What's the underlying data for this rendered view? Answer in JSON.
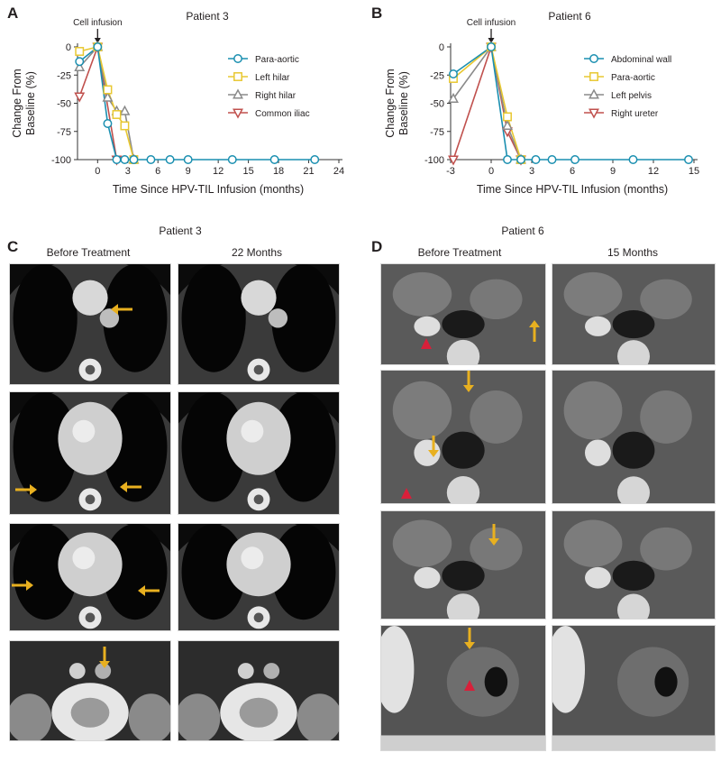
{
  "panels": {
    "a": {
      "letter": "A",
      "title": "Patient 3"
    },
    "b": {
      "letter": "B",
      "title": "Patient 6"
    },
    "c": {
      "letter": "C",
      "title": "Patient 3",
      "col1": "Before Treatment",
      "col2": "22 Months"
    },
    "d": {
      "letter": "D",
      "title": "Patient 6",
      "col1": "Before Treatment",
      "col2": "15 Months"
    }
  },
  "colors": {
    "teal": "#1a8fb0",
    "yellow": "#e8c832",
    "gray": "#8a8a8a",
    "red": "#c0504d",
    "arrow": "#e8b020",
    "arrowhead_red": "#d8203a"
  },
  "chart_data": [
    {
      "type": "line",
      "title": "Patient 3",
      "annotation": "Cell infusion",
      "xlabel": "Time Since HPV-TIL Infusion (months)",
      "ylabel": "Change From Baseline (%)",
      "xlim": [
        -2,
        24
      ],
      "ylim": [
        -100,
        0
      ],
      "xticks": [
        0,
        3,
        6,
        9,
        12,
        15,
        18,
        21,
        24
      ],
      "yticks": [
        0,
        -25,
        -50,
        -75,
        -100
      ],
      "legend_position": "right",
      "series": [
        {
          "name": "Para-aortic",
          "marker": "circle",
          "color": "#1a8fb0",
          "x": [
            -1.8,
            0,
            1,
            1.9,
            2.7,
            3.6,
            5.3,
            7.2,
            9,
            13.4,
            17.6,
            21.6
          ],
          "y": [
            -13,
            0,
            -68,
            -100,
            -100,
            -100,
            -100,
            -100,
            -100,
            -100,
            -100,
            -100
          ]
        },
        {
          "name": "Left hilar",
          "marker": "square",
          "color": "#e8c832",
          "x": [
            -1.8,
            0,
            1,
            1.9,
            2.7,
            3.6
          ],
          "y": [
            -4,
            0,
            -38,
            -60,
            -70,
            -100
          ]
        },
        {
          "name": "Right hilar",
          "marker": "triangle",
          "color": "#8a8a8a",
          "x": [
            -1.8,
            0,
            1,
            1.9,
            2.7,
            3.6
          ],
          "y": [
            -18,
            0,
            -45,
            -57,
            -57,
            -100
          ]
        },
        {
          "name": "Common iliac",
          "marker": "triangle-down",
          "color": "#c0504d",
          "x": [
            -1.8,
            0,
            1.9
          ],
          "y": [
            -44,
            0,
            -100
          ]
        }
      ]
    },
    {
      "type": "line",
      "title": "Patient 6",
      "annotation": "Cell infusion",
      "xlabel": "Time Since HPV-TIL Infusion (months)",
      "ylabel": "Change From Baseline (%)",
      "xlim": [
        -3,
        15
      ],
      "ylim": [
        -100,
        0
      ],
      "xticks": [
        -3,
        0,
        3,
        6,
        9,
        12,
        15
      ],
      "yticks": [
        0,
        -25,
        -50,
        -75,
        -100
      ],
      "legend_position": "right",
      "series": [
        {
          "name": "Abdominal wall",
          "marker": "circle",
          "color": "#1a8fb0",
          "x": [
            -2.8,
            0,
            1.2,
            2.2,
            3.3,
            4.5,
            6.2,
            10.5,
            14.6
          ],
          "y": [
            -24,
            0,
            -100,
            -100,
            -100,
            -100,
            -100,
            -100,
            -100
          ]
        },
        {
          "name": "Para-aortic",
          "marker": "square",
          "color": "#e8c832",
          "x": [
            -2.8,
            0,
            1.2,
            2.2
          ],
          "y": [
            -28,
            0,
            -62,
            -100
          ]
        },
        {
          "name": "Left pelvis",
          "marker": "triangle",
          "color": "#8a8a8a",
          "x": [
            -2.8,
            0,
            1.2,
            2.2
          ],
          "y": [
            -46,
            0,
            -70,
            -100
          ]
        },
        {
          "name": "Right ureter",
          "marker": "triangle-down",
          "color": "#c0504d",
          "x": [
            -2.8,
            0,
            1.2,
            2.2
          ],
          "y": [
            -100,
            0,
            -75,
            -100
          ]
        }
      ]
    }
  ]
}
